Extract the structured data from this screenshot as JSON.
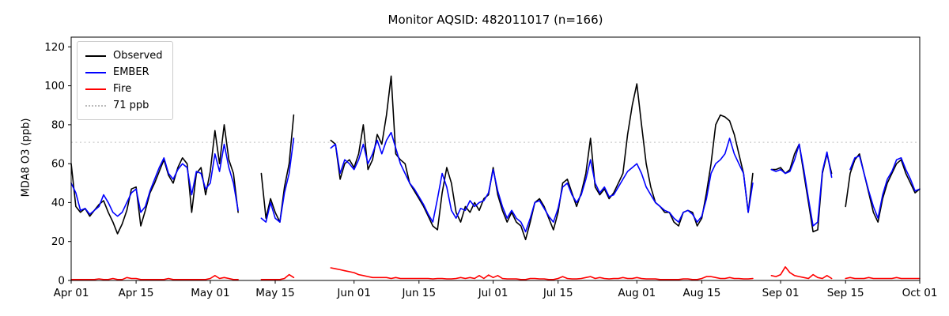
{
  "chart_data": {
    "type": "line",
    "title": "Monitor AQSID: 482011017 (n=166)",
    "ylabel": "MDA8 O3 (ppb)",
    "xlabel": "",
    "ylim": [
      0,
      125
    ],
    "x_range": [
      0,
      183
    ],
    "grid": false,
    "legend_position": "upper left",
    "yticks": [
      0,
      20,
      40,
      60,
      80,
      100,
      120
    ],
    "xticks": [
      {
        "pos": 0,
        "label": "Apr 01"
      },
      {
        "pos": 14,
        "label": "Apr 15"
      },
      {
        "pos": 30,
        "label": "May 01"
      },
      {
        "pos": 44,
        "label": "May 15"
      },
      {
        "pos": 61,
        "label": "Jun 01"
      },
      {
        "pos": 75,
        "label": "Jun 15"
      },
      {
        "pos": 91,
        "label": "Jul 01"
      },
      {
        "pos": 105,
        "label": "Jul 15"
      },
      {
        "pos": 122,
        "label": "Aug 01"
      },
      {
        "pos": 136,
        "label": "Aug 15"
      },
      {
        "pos": 153,
        "label": "Sep 01"
      },
      {
        "pos": 167,
        "label": "Sep 15"
      },
      {
        "pos": 183,
        "label": "Oct 01"
      }
    ],
    "threshold": {
      "value": 71,
      "label": "71 ppb",
      "color": "#cccccc"
    },
    "legend": [
      {
        "label": "Observed",
        "color": "#000000",
        "style": "solid"
      },
      {
        "label": "EMBER",
        "color": "#0000ff",
        "style": "solid"
      },
      {
        "label": "Fire",
        "color": "#ff0000",
        "style": "solid"
      },
      {
        "label": "71 ppb",
        "color": "#bbbbbb",
        "style": "dotted"
      }
    ],
    "x_unit": "days since Apr 01",
    "series": [
      {
        "name": "Observed",
        "color": "#000000",
        "values": [
          60,
          38,
          35,
          37,
          33,
          36,
          39,
          41,
          35,
          30,
          24,
          29,
          36,
          47,
          48,
          28,
          36,
          45,
          50,
          56,
          62,
          54,
          50,
          58,
          63,
          60,
          35,
          55,
          58,
          44,
          56,
          77,
          60,
          80,
          62,
          55,
          35,
          null,
          null,
          null,
          null,
          55,
          32,
          42,
          35,
          30,
          48,
          60,
          85,
          null,
          null,
          null,
          null,
          null,
          null,
          null,
          72,
          70,
          52,
          60,
          62,
          58,
          65,
          80,
          57,
          62,
          75,
          70,
          85,
          105,
          65,
          62,
          60,
          50,
          46,
          42,
          38,
          33,
          28,
          26,
          45,
          58,
          50,
          35,
          30,
          38,
          35,
          40,
          36,
          42,
          44,
          58,
          44,
          36,
          30,
          35,
          30,
          28,
          21,
          30,
          40,
          42,
          38,
          32,
          26,
          35,
          50,
          52,
          45,
          38,
          45,
          55,
          73,
          48,
          44,
          47,
          42,
          45,
          50,
          55,
          75,
          90,
          101,
          80,
          60,
          48,
          40,
          38,
          35,
          35,
          30,
          28,
          35,
          36,
          35,
          28,
          32,
          45,
          60,
          80,
          85,
          84,
          82,
          75,
          65,
          55,
          35,
          55,
          null,
          null,
          null,
          57,
          57,
          58,
          55,
          57,
          65,
          70,
          55,
          40,
          25,
          26,
          55,
          65,
          55,
          null,
          null,
          38,
          55,
          62,
          65,
          55,
          45,
          35,
          30,
          42,
          50,
          55,
          60,
          62,
          55,
          50,
          45,
          47
        ]
      },
      {
        "name": "EMBER",
        "color": "#0000ff",
        "values": [
          50,
          45,
          36,
          37,
          34,
          36,
          38,
          44,
          40,
          35,
          33,
          35,
          40,
          45,
          47,
          35,
          38,
          46,
          52,
          58,
          63,
          55,
          52,
          57,
          60,
          58,
          44,
          56,
          55,
          47,
          50,
          65,
          56,
          70,
          58,
          50,
          36,
          null,
          null,
          null,
          null,
          32,
          30,
          40,
          32,
          30,
          45,
          55,
          73,
          null,
          null,
          null,
          null,
          null,
          null,
          null,
          68,
          70,
          55,
          62,
          60,
          57,
          62,
          70,
          60,
          65,
          72,
          65,
          72,
          76,
          68,
          60,
          55,
          50,
          47,
          43,
          39,
          34,
          30,
          42,
          55,
          48,
          36,
          32,
          37,
          36,
          41,
          38,
          40,
          41,
          45,
          57,
          46,
          38,
          32,
          36,
          32,
          30,
          25,
          32,
          40,
          41,
          37,
          33,
          30,
          37,
          48,
          50,
          44,
          40,
          44,
          52,
          62,
          50,
          45,
          48,
          43,
          44,
          48,
          52,
          56,
          58,
          60,
          55,
          48,
          44,
          40,
          38,
          36,
          35,
          32,
          30,
          35,
          36,
          34,
          30,
          33,
          42,
          55,
          60,
          62,
          65,
          73,
          65,
          60,
          55,
          35,
          50,
          null,
          null,
          null,
          57,
          56,
          57,
          55,
          56,
          62,
          70,
          57,
          42,
          28,
          30,
          56,
          66,
          53,
          null,
          null,
          null,
          57,
          63,
          64,
          55,
          46,
          38,
          32,
          44,
          52,
          56,
          62,
          63,
          57,
          52,
          46,
          47
        ]
      },
      {
        "name": "Fire",
        "color": "#ff0000",
        "values": [
          0.5,
          0.5,
          0.5,
          0.5,
          0.5,
          0.5,
          0.8,
          0.5,
          0.5,
          1,
          0.5,
          0.5,
          1.5,
          1,
          1,
          0.5,
          0.5,
          0.5,
          0.5,
          0.5,
          0.5,
          1,
          0.5,
          0.5,
          0.5,
          0.5,
          0.5,
          0.5,
          0.5,
          0.5,
          1,
          2.5,
          1,
          1.5,
          1,
          0.5,
          0.5,
          null,
          null,
          null,
          null,
          0.5,
          0.5,
          0.5,
          0.5,
          0.5,
          1,
          3,
          1.5,
          null,
          null,
          null,
          null,
          null,
          null,
          null,
          6.5,
          6,
          5.5,
          5,
          4.5,
          4,
          3,
          2.5,
          2,
          1.5,
          1.5,
          1.5,
          1.5,
          1,
          1.5,
          1,
          1,
          1,
          1,
          1,
          1,
          1,
          0.8,
          1,
          1,
          0.8,
          0.8,
          1,
          1.5,
          1,
          1.5,
          1,
          2.5,
          1,
          2.8,
          1.5,
          2.5,
          1,
          0.8,
          0.8,
          0.8,
          0.5,
          0.5,
          1,
          1,
          0.8,
          0.8,
          0.5,
          0.5,
          1,
          2,
          1,
          0.8,
          0.8,
          1,
          1.5,
          2,
          1,
          1.5,
          1,
          0.8,
          1,
          1,
          1.5,
          1,
          1,
          1.5,
          1,
          0.8,
          0.8,
          0.8,
          0.5,
          0.5,
          0.5,
          0.5,
          0.5,
          0.8,
          0.8,
          0.5,
          0.5,
          1,
          2,
          2,
          1.5,
          1,
          1,
          1.5,
          1,
          1,
          0.8,
          0.8,
          1,
          null,
          null,
          null,
          2.5,
          2,
          3,
          7,
          4,
          2.5,
          2,
          1.5,
          1,
          3,
          1.5,
          1,
          2.5,
          1,
          null,
          null,
          1,
          1.5,
          1,
          1,
          1,
          1.5,
          1,
          1,
          1,
          1,
          1,
          1.5,
          1,
          1,
          1,
          1,
          1
        ]
      }
    ]
  }
}
